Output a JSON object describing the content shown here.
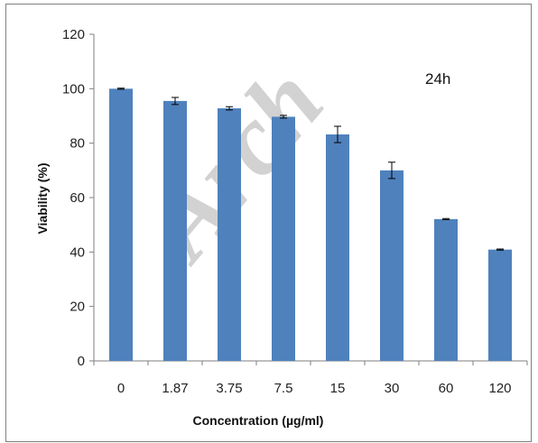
{
  "chart_data": {
    "type": "bar",
    "categories": [
      "0",
      "1.87",
      "3.75",
      "7.5",
      "15",
      "30",
      "60",
      "120"
    ],
    "values": [
      100,
      95.5,
      92.8,
      89.7,
      83.2,
      70.0,
      52.1,
      40.9
    ],
    "errors": [
      0.2,
      1.3,
      0.6,
      0.5,
      3.0,
      3.0,
      0.2,
      0.2
    ],
    "xlabel": "Concentration (µg/ml)",
    "ylabel": "Viability (%)",
    "ylim": [
      0,
      120
    ],
    "yticks": [
      0,
      20,
      40,
      60,
      80,
      100,
      120
    ],
    "annotation": "24h",
    "watermark": "Arch",
    "bar_color": "#4f81bd",
    "grid": false,
    "legend": "none"
  }
}
